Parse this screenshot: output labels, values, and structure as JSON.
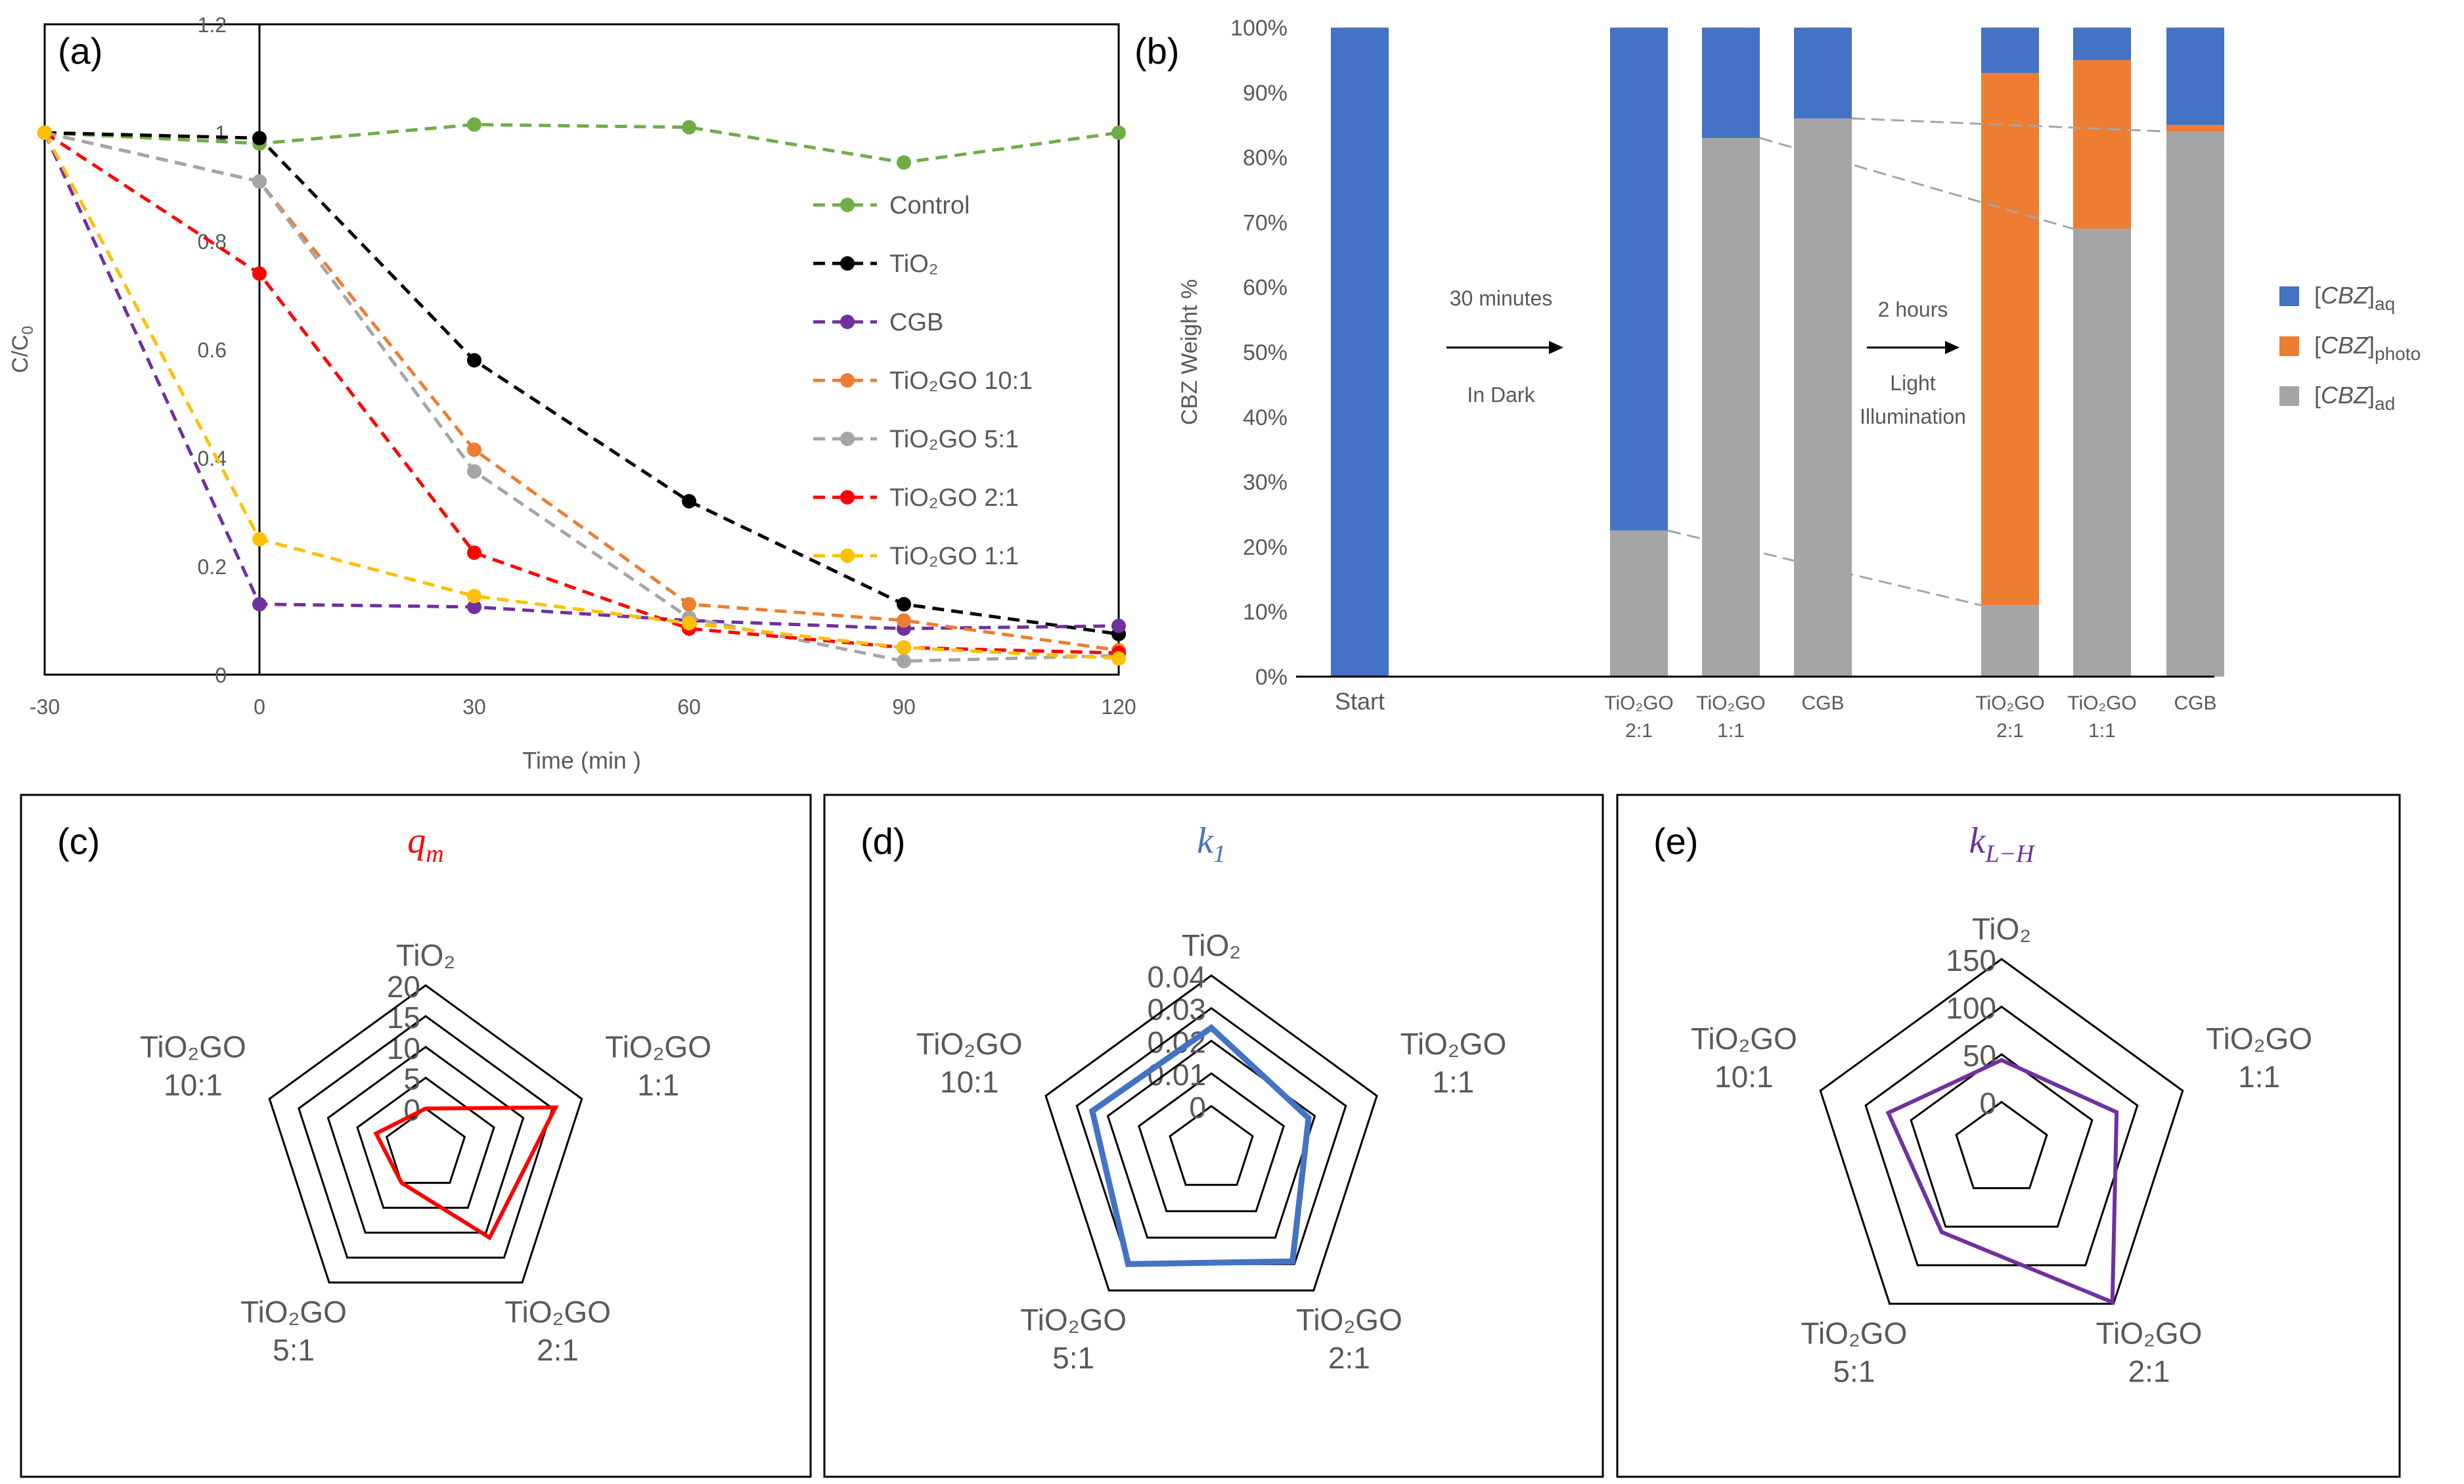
{
  "panel_labels": [
    "(a)",
    "(b)",
    "(c)",
    "(d)",
    "(e)"
  ],
  "chart_data": [
    {
      "type": "line",
      "panel": "(a)",
      "xlabel": "Time (min )",
      "ylabel": "C/C0",
      "x": [
        -30,
        0,
        30,
        60,
        90,
        120
      ],
      "xlim": [
        -30,
        120
      ],
      "ylim": [
        0,
        1.2
      ],
      "xticks": [
        "-30",
        "0",
        "30",
        "60",
        "90",
        "120"
      ],
      "yticks": [
        "0",
        "0.2",
        "0.4",
        "0.6",
        "0.8",
        "1",
        "1.2"
      ],
      "series": [
        {
          "name": "Control",
          "color": "#70AD47",
          "values": [
            1.0,
            0.98,
            1.015,
            1.01,
            0.945,
            1.0
          ]
        },
        {
          "name": "TiO₂",
          "color": "#000000",
          "values": [
            1.0,
            0.99,
            0.58,
            0.32,
            0.13,
            0.075
          ]
        },
        {
          "name": "CGB",
          "color": "#7030A0",
          "values": [
            1.0,
            0.13,
            0.125,
            0.1,
            0.085,
            0.09
          ]
        },
        {
          "name": "TiO₂GO 10:1",
          "color": "#ED7D31",
          "values": [
            1.0,
            0.91,
            0.415,
            0.13,
            0.1,
            0.045
          ]
        },
        {
          "name": "TiO₂GO 5:1",
          "color": "#A5A5A5",
          "values": [
            1.0,
            0.91,
            0.375,
            0.105,
            0.025,
            0.035
          ]
        },
        {
          "name": "TiO₂GO 2:1",
          "color": "#FF0000",
          "values": [
            1.0,
            0.74,
            0.225,
            0.085,
            0.05,
            0.04
          ]
        },
        {
          "name": "TiO₂GO 1:1",
          "color": "#FFC000",
          "values": [
            1.0,
            0.25,
            0.145,
            0.095,
            0.05,
            0.03
          ]
        }
      ]
    },
    {
      "type": "bar",
      "stacked": true,
      "panel": "(b)",
      "ylabel": "CBZ Weight %",
      "ylim": [
        0,
        100
      ],
      "yticks": [
        "0%",
        "10%",
        "20%",
        "30%",
        "40%",
        "50%",
        "60%",
        "70%",
        "80%",
        "90%",
        "100%"
      ],
      "categories": [
        [
          "Start"
        ],
        [
          "TiO₂GO",
          "2:1"
        ],
        [
          "TiO₂GO",
          "1:1"
        ],
        [
          "CGB"
        ],
        [
          "TiO₂GO",
          "2:1"
        ],
        [
          "TiO₂GO",
          "1:1"
        ],
        [
          "CGB"
        ]
      ],
      "series": [
        {
          "name": "[CBZ]ad",
          "label_main": "[CBZ]",
          "label_sub": "ad",
          "color": "#A5A5A5",
          "values": [
            0,
            22.5,
            83,
            86,
            11,
            69,
            84
          ]
        },
        {
          "name": "[CBZ]photo",
          "label_main": "[CBZ]",
          "label_sub": "photo",
          "color": "#ED7D31",
          "values": [
            0,
            0,
            0,
            0,
            82,
            26,
            1
          ]
        },
        {
          "name": "[CBZ]aq",
          "label_main": "[CBZ]",
          "label_sub": "aq",
          "color": "#4472C4",
          "values": [
            100,
            77.5,
            17,
            14,
            7,
            5,
            15
          ]
        }
      ],
      "annotations": {
        "dark_top": "30 minutes",
        "dark_bottom": "In Dark",
        "light_top": "2 hours",
        "light_mid": "Light",
        "light_bottom": "Illumination"
      }
    },
    {
      "type": "radar",
      "panel": "(c)",
      "title_main": "q",
      "title_sub": "m",
      "title_color": "#FF0000",
      "line_color": "#FF0000",
      "axes": [
        [
          "TiO₂"
        ],
        [
          "TiO₂GO",
          "1:1"
        ],
        [
          "TiO₂GO",
          "2:1"
        ],
        [
          "TiO₂GO",
          "5:1"
        ],
        [
          "TiO₂GO",
          "10:1"
        ]
      ],
      "rlim": [
        0,
        20
      ],
      "rticks": [
        "0",
        "5",
        "10",
        "15",
        "20"
      ],
      "values": [
        0,
        15.5,
        11,
        0,
        1.8
      ]
    },
    {
      "type": "radar",
      "panel": "(d)",
      "title_main": "k",
      "title_sub": "1",
      "title_color": "#4472C4",
      "line_color": "#4472C4",
      "axes": [
        [
          "TiO₂"
        ],
        [
          "TiO₂GO",
          "1:1"
        ],
        [
          "TiO₂GO",
          "2:1"
        ],
        [
          "TiO₂GO",
          "5:1"
        ],
        [
          "TiO₂GO",
          "10:1"
        ]
      ],
      "rlim": [
        0,
        0.04
      ],
      "rticks": [
        "0",
        "0.01",
        "0.02",
        "0.03",
        "0.04"
      ],
      "values": [
        0.024,
        0.018,
        0.029,
        0.03,
        0.025
      ]
    },
    {
      "type": "radar",
      "panel": "(e)",
      "title_main": "k",
      "title_sub": "L−H",
      "title_color": "#7030A0",
      "line_color": "#7030A0",
      "axes": [
        [
          "TiO₂"
        ],
        [
          "TiO₂GO",
          "1:1"
        ],
        [
          "TiO₂GO",
          "2:1"
        ],
        [
          "TiO₂GO",
          "5:1"
        ],
        [
          "TiO₂GO",
          "10:1"
        ]
      ],
      "rlim": [
        0,
        150
      ],
      "rticks": [
        "0",
        "50",
        "100",
        "150"
      ],
      "values": [
        44,
        77,
        148,
        57,
        75
      ]
    }
  ]
}
